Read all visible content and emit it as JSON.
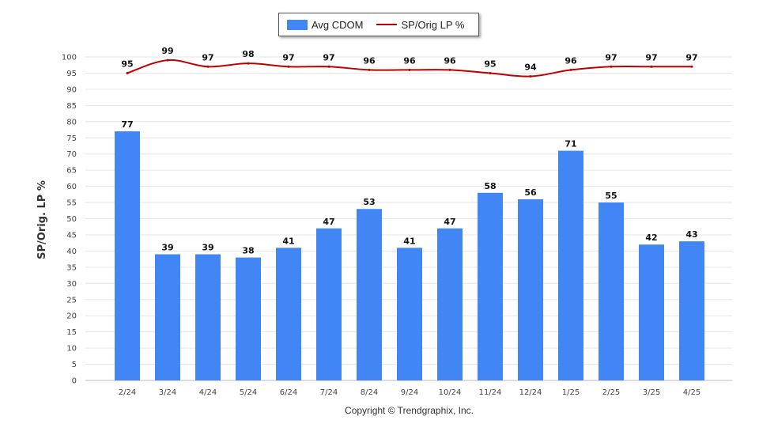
{
  "legend": {
    "bar_label": "Avg CDOM",
    "line_label": "SP/Orig LP %"
  },
  "copyright": "Copyright © Trendgraphix, Inc.",
  "colors": {
    "bar": "#4285f4",
    "line": "#c00000",
    "grid": "#e6e6e6"
  },
  "chart_data": {
    "type": "bar",
    "ylabel": "SP/Orig. LP %",
    "ylim": [
      0,
      100
    ],
    "yticks": [
      0,
      5,
      10,
      15,
      20,
      25,
      30,
      35,
      40,
      45,
      50,
      55,
      60,
      65,
      70,
      75,
      80,
      85,
      90,
      95,
      100
    ],
    "categories": [
      "2/24",
      "3/24",
      "4/24",
      "5/24",
      "6/24",
      "7/24",
      "8/24",
      "9/24",
      "10/24",
      "11/24",
      "12/24",
      "1/25",
      "2/25",
      "3/25",
      "4/25"
    ],
    "series": [
      {
        "name": "Avg CDOM",
        "type": "bar",
        "values": [
          77,
          39,
          39,
          38,
          41,
          47,
          53,
          41,
          47,
          58,
          56,
          71,
          55,
          42,
          43
        ]
      },
      {
        "name": "SP/Orig LP %",
        "type": "line",
        "values": [
          95,
          99,
          97,
          98,
          97,
          97,
          96,
          96,
          96,
          95,
          94,
          96,
          97,
          97,
          97
        ]
      }
    ],
    "grid": true,
    "legend_position": "top-center"
  }
}
